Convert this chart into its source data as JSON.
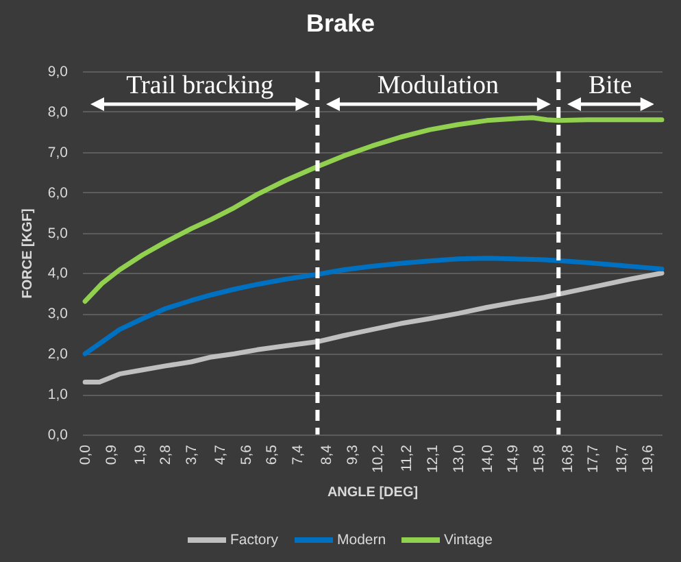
{
  "chart_data": {
    "type": "line",
    "title": "Brake",
    "xlabel": "ANGLE [DEG]",
    "ylabel": "FORCE [KGF]",
    "series": [
      {
        "name": "Factory",
        "color": "#bfbfbf",
        "x": [
          0,
          0.5,
          1.2,
          2.0,
          2.8,
          3.7,
          4.4,
          5.2,
          6.0,
          7.0,
          8.1,
          9.0,
          10.0,
          11.0,
          12.0,
          13.0,
          14.0,
          15.0,
          16.0,
          17.0,
          18.0,
          19.0,
          20.1
        ],
        "values": [
          1.3,
          1.3,
          1.5,
          1.6,
          1.7,
          1.8,
          1.92,
          2.0,
          2.1,
          2.2,
          2.3,
          2.45,
          2.6,
          2.75,
          2.87,
          3.0,
          3.15,
          3.28,
          3.4,
          3.55,
          3.7,
          3.85,
          4.0
        ]
      },
      {
        "name": "Modern",
        "color": "#0070c0",
        "x": [
          0,
          0.6,
          1.2,
          2.0,
          2.8,
          3.7,
          4.4,
          5.2,
          6.0,
          7.0,
          8.1,
          9.0,
          10.0,
          11.0,
          12.0,
          13.0,
          14.0,
          15.0,
          16.0,
          16.5,
          17.5,
          18.5,
          19.3,
          20.1
        ],
        "values": [
          2.0,
          2.3,
          2.6,
          2.87,
          3.12,
          3.32,
          3.46,
          3.6,
          3.72,
          3.85,
          3.97,
          4.08,
          4.17,
          4.24,
          4.3,
          4.35,
          4.37,
          4.35,
          4.33,
          4.31,
          4.26,
          4.2,
          4.15,
          4.1
        ]
      },
      {
        "name": "Vintage",
        "color": "#92d050",
        "x": [
          0,
          0.6,
          1.2,
          2.0,
          2.8,
          3.7,
          4.4,
          5.2,
          6.0,
          7.0,
          8.1,
          9.0,
          10.0,
          11.0,
          12.0,
          13.0,
          14.0,
          15.0,
          15.6,
          16.1,
          16.5,
          17.5,
          20.1
        ],
        "values": [
          3.3,
          3.75,
          4.08,
          4.45,
          4.77,
          5.1,
          5.33,
          5.62,
          5.95,
          6.3,
          6.64,
          6.9,
          7.15,
          7.37,
          7.55,
          7.68,
          7.78,
          7.83,
          7.85,
          7.8,
          7.78,
          7.8,
          7.8
        ]
      }
    ],
    "xlim": [
      -0.1,
      20.1
    ],
    "ylim": [
      0,
      9
    ],
    "xticks": [
      {
        "value": 0,
        "label": "0,0"
      },
      {
        "value": 0.9,
        "label": "0,9"
      },
      {
        "value": 1.9,
        "label": "1,9"
      },
      {
        "value": 2.8,
        "label": "2,8"
      },
      {
        "value": 3.7,
        "label": "3,7"
      },
      {
        "value": 4.7,
        "label": "4,7"
      },
      {
        "value": 5.6,
        "label": "5,6"
      },
      {
        "value": 6.5,
        "label": "6,5"
      },
      {
        "value": 7.4,
        "label": "7,4"
      },
      {
        "value": 8.4,
        "label": "8,4"
      },
      {
        "value": 9.3,
        "label": "9,3"
      },
      {
        "value": 10.2,
        "label": "10,2"
      },
      {
        "value": 11.2,
        "label": "11,2"
      },
      {
        "value": 12.1,
        "label": "12,1"
      },
      {
        "value": 13.0,
        "label": "13,0"
      },
      {
        "value": 14.0,
        "label": "14,0"
      },
      {
        "value": 14.9,
        "label": "14,9"
      },
      {
        "value": 15.8,
        "label": "15,8"
      },
      {
        "value": 16.8,
        "label": "16,8"
      },
      {
        "value": 17.7,
        "label": "17,7"
      },
      {
        "value": 18.7,
        "label": "18,7"
      },
      {
        "value": 19.6,
        "label": "19,6"
      }
    ],
    "yticks": [
      {
        "value": 0,
        "label": "0,0"
      },
      {
        "value": 1,
        "label": "1,0"
      },
      {
        "value": 2,
        "label": "2,0"
      },
      {
        "value": 3,
        "label": "3,0"
      },
      {
        "value": 4,
        "label": "4,0"
      },
      {
        "value": 5,
        "label": "5,0"
      },
      {
        "value": 6,
        "label": "6,0"
      },
      {
        "value": 7,
        "label": "7,0"
      },
      {
        "value": 8,
        "label": "8,0"
      },
      {
        "value": 9,
        "label": "9,0"
      }
    ],
    "grid": "y",
    "legend": "bottom",
    "ref_lines": [
      {
        "axis": "x",
        "value": 8.1,
        "color": "#ffffff",
        "line_style": "dashed"
      },
      {
        "axis": "x",
        "value": 16.5,
        "color": "#ffffff",
        "line_style": "dashed"
      }
    ],
    "annotations": [
      "Trail bracking",
      "Modulation",
      "Bite"
    ]
  }
}
